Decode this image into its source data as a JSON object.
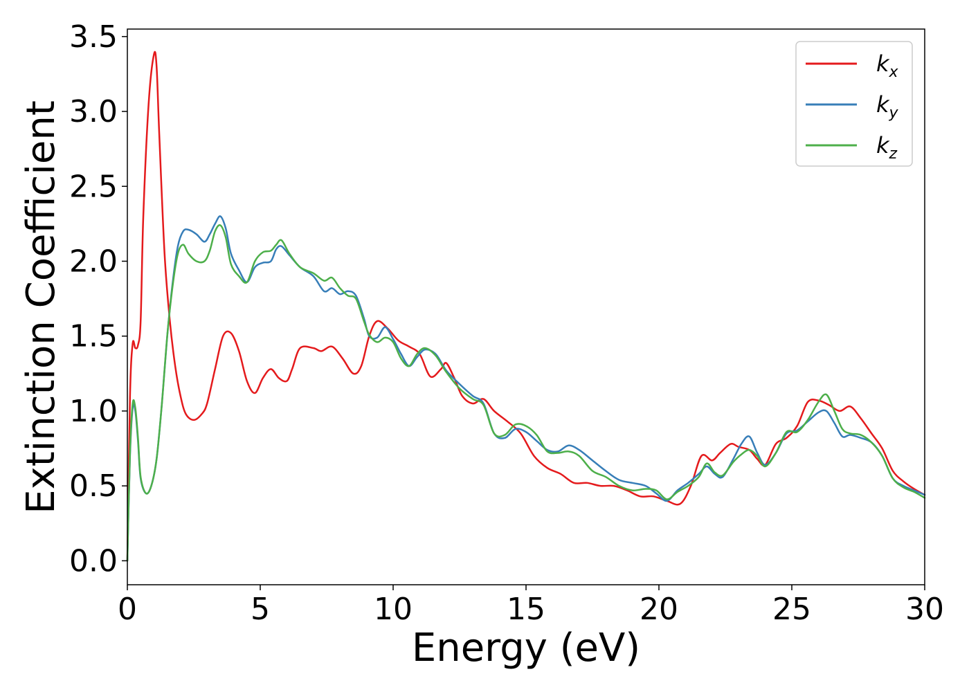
{
  "chart_data": {
    "type": "line",
    "xlabel": "Energy (eV)",
    "ylabel": "Extinction Coefficient",
    "xlim": [
      0,
      30
    ],
    "ylim": [
      -0.16,
      3.55
    ],
    "xticks": [
      0,
      5,
      10,
      15,
      20,
      25,
      30
    ],
    "xtick_labels": [
      "0",
      "5",
      "10",
      "15",
      "20",
      "25",
      "30"
    ],
    "yticks": [
      0.0,
      0.5,
      1.0,
      1.5,
      2.0,
      2.5,
      3.0,
      3.5
    ],
    "ytick_labels": [
      "0.0",
      "0.5",
      "1.0",
      "1.5",
      "2.0",
      "2.5",
      "3.0",
      "3.5"
    ],
    "grid": false,
    "legend_position": "top-right",
    "series": [
      {
        "name": "k",
        "subscript": "x",
        "color": "#e41a1c",
        "x": [
          0,
          0.1,
          0.2,
          0.3,
          0.4,
          0.5,
          0.6,
          0.8,
          1.0,
          1.1,
          1.2,
          1.4,
          1.6,
          1.8,
          2.0,
          2.2,
          2.5,
          2.8,
          3.0,
          3.3,
          3.6,
          3.9,
          4.2,
          4.5,
          4.8,
          5.1,
          5.4,
          5.7,
          6.0,
          6.2,
          6.5,
          7.0,
          7.3,
          7.7,
          8.1,
          8.5,
          8.8,
          9.1,
          9.4,
          9.8,
          10.2,
          10.6,
          11.0,
          11.4,
          11.8,
          12.0,
          12.3,
          12.6,
          13.0,
          13.4,
          13.8,
          14.3,
          14.8,
          15.3,
          15.8,
          16.3,
          16.8,
          17.3,
          17.8,
          18.3,
          18.8,
          19.3,
          19.8,
          20.3,
          20.8,
          21.2,
          21.6,
          22.0,
          22.3,
          22.7,
          23.0,
          23.4,
          23.7,
          24.0,
          24.4,
          24.8,
          25.2,
          25.6,
          26.0,
          26.4,
          26.8,
          27.2,
          27.6,
          28.0,
          28.4,
          28.8,
          29.2,
          29.6,
          30.0
        ],
        "y": [
          0.0,
          1.1,
          1.45,
          1.42,
          1.44,
          1.6,
          2.3,
          3.05,
          3.38,
          3.3,
          2.85,
          2.05,
          1.6,
          1.3,
          1.1,
          0.98,
          0.94,
          0.98,
          1.05,
          1.28,
          1.5,
          1.52,
          1.4,
          1.2,
          1.12,
          1.22,
          1.28,
          1.22,
          1.2,
          1.28,
          1.42,
          1.42,
          1.4,
          1.43,
          1.35,
          1.25,
          1.3,
          1.5,
          1.6,
          1.55,
          1.47,
          1.43,
          1.38,
          1.23,
          1.28,
          1.32,
          1.22,
          1.1,
          1.05,
          1.08,
          1.0,
          0.93,
          0.85,
          0.7,
          0.62,
          0.58,
          0.52,
          0.52,
          0.5,
          0.5,
          0.47,
          0.43,
          0.43,
          0.4,
          0.38,
          0.5,
          0.7,
          0.67,
          0.72,
          0.78,
          0.76,
          0.74,
          0.68,
          0.64,
          0.78,
          0.82,
          0.9,
          1.06,
          1.07,
          1.04,
          1.0,
          1.03,
          0.95,
          0.85,
          0.75,
          0.6,
          0.53,
          0.48,
          0.44
        ]
      },
      {
        "name": "k",
        "subscript": "y",
        "color": "#377eb8",
        "x": [
          0,
          0.1,
          0.2,
          0.3,
          0.4,
          0.5,
          0.7,
          0.9,
          1.1,
          1.3,
          1.5,
          1.7,
          1.9,
          2.1,
          2.3,
          2.6,
          2.9,
          3.1,
          3.3,
          3.5,
          3.7,
          3.9,
          4.2,
          4.5,
          4.8,
          5.1,
          5.4,
          5.6,
          5.8,
          6.1,
          6.5,
          7.0,
          7.4,
          7.7,
          8.0,
          8.3,
          8.6,
          8.9,
          9.1,
          9.4,
          9.7,
          10.0,
          10.3,
          10.6,
          10.9,
          11.2,
          11.6,
          12.0,
          12.5,
          13.0,
          13.4,
          13.8,
          14.2,
          14.6,
          15.0,
          15.4,
          15.8,
          16.2,
          16.6,
          17.0,
          17.5,
          18.0,
          18.5,
          19.0,
          19.5,
          19.9,
          20.3,
          20.7,
          21.1,
          21.5,
          21.8,
          22.1,
          22.4,
          22.8,
          23.1,
          23.4,
          23.7,
          24.0,
          24.4,
          24.8,
          25.2,
          25.6,
          26.0,
          26.3,
          26.6,
          26.9,
          27.2,
          27.6,
          28.0,
          28.4,
          28.8,
          29.2,
          29.6,
          30.0
        ],
        "y": [
          0.0,
          0.7,
          1.02,
          1.0,
          0.8,
          0.55,
          0.45,
          0.5,
          0.68,
          1.05,
          1.5,
          1.85,
          2.1,
          2.2,
          2.21,
          2.18,
          2.13,
          2.18,
          2.25,
          2.3,
          2.22,
          2.05,
          1.94,
          1.86,
          1.96,
          1.99,
          2.0,
          2.08,
          2.1,
          2.04,
          1.96,
          1.9,
          1.8,
          1.82,
          1.78,
          1.8,
          1.77,
          1.62,
          1.5,
          1.49,
          1.56,
          1.48,
          1.38,
          1.3,
          1.36,
          1.41,
          1.38,
          1.27,
          1.18,
          1.1,
          1.05,
          0.85,
          0.82,
          0.88,
          0.86,
          0.8,
          0.74,
          0.73,
          0.77,
          0.74,
          0.67,
          0.6,
          0.54,
          0.52,
          0.5,
          0.45,
          0.4,
          0.47,
          0.52,
          0.58,
          0.63,
          0.58,
          0.56,
          0.68,
          0.78,
          0.83,
          0.72,
          0.64,
          0.72,
          0.85,
          0.87,
          0.93,
          0.99,
          1.0,
          0.92,
          0.83,
          0.84,
          0.82,
          0.79,
          0.7,
          0.55,
          0.5,
          0.47,
          0.44
        ]
      },
      {
        "name": "k",
        "subscript": "z",
        "color": "#4daf4a",
        "x": [
          0,
          0.1,
          0.2,
          0.3,
          0.4,
          0.5,
          0.7,
          0.9,
          1.1,
          1.3,
          1.5,
          1.7,
          1.9,
          2.1,
          2.3,
          2.6,
          2.9,
          3.1,
          3.3,
          3.5,
          3.7,
          3.9,
          4.2,
          4.5,
          4.8,
          5.1,
          5.4,
          5.6,
          5.8,
          6.1,
          6.5,
          7.0,
          7.4,
          7.7,
          8.0,
          8.3,
          8.6,
          8.9,
          9.1,
          9.4,
          9.7,
          10.0,
          10.3,
          10.6,
          10.9,
          11.2,
          11.6,
          12.0,
          12.5,
          13.0,
          13.4,
          13.8,
          14.2,
          14.6,
          15.0,
          15.4,
          15.8,
          16.2,
          16.6,
          17.0,
          17.5,
          18.0,
          18.5,
          19.0,
          19.5,
          19.9,
          20.3,
          20.7,
          21.1,
          21.5,
          21.8,
          22.1,
          22.4,
          22.8,
          23.1,
          23.4,
          23.7,
          24.0,
          24.4,
          24.8,
          25.2,
          25.6,
          26.0,
          26.3,
          26.6,
          26.9,
          27.2,
          27.6,
          28.0,
          28.4,
          28.8,
          29.2,
          29.6,
          30.0
        ],
        "y": [
          0.0,
          0.72,
          1.05,
          1.02,
          0.82,
          0.56,
          0.45,
          0.5,
          0.68,
          1.05,
          1.5,
          1.83,
          2.05,
          2.11,
          2.05,
          2.0,
          2.0,
          2.07,
          2.2,
          2.24,
          2.16,
          1.98,
          1.9,
          1.86,
          2.0,
          2.06,
          2.07,
          2.11,
          2.14,
          2.05,
          1.96,
          1.92,
          1.87,
          1.89,
          1.82,
          1.77,
          1.75,
          1.6,
          1.51,
          1.46,
          1.49,
          1.46,
          1.35,
          1.3,
          1.38,
          1.42,
          1.37,
          1.26,
          1.15,
          1.08,
          1.04,
          0.85,
          0.84,
          0.91,
          0.9,
          0.84,
          0.73,
          0.72,
          0.73,
          0.7,
          0.6,
          0.56,
          0.5,
          0.47,
          0.48,
          0.47,
          0.41,
          0.46,
          0.5,
          0.56,
          0.65,
          0.59,
          0.57,
          0.66,
          0.71,
          0.74,
          0.7,
          0.63,
          0.72,
          0.86,
          0.86,
          0.94,
          1.06,
          1.11,
          1.0,
          0.88,
          0.85,
          0.84,
          0.79,
          0.7,
          0.55,
          0.49,
          0.46,
          0.42
        ]
      }
    ]
  }
}
